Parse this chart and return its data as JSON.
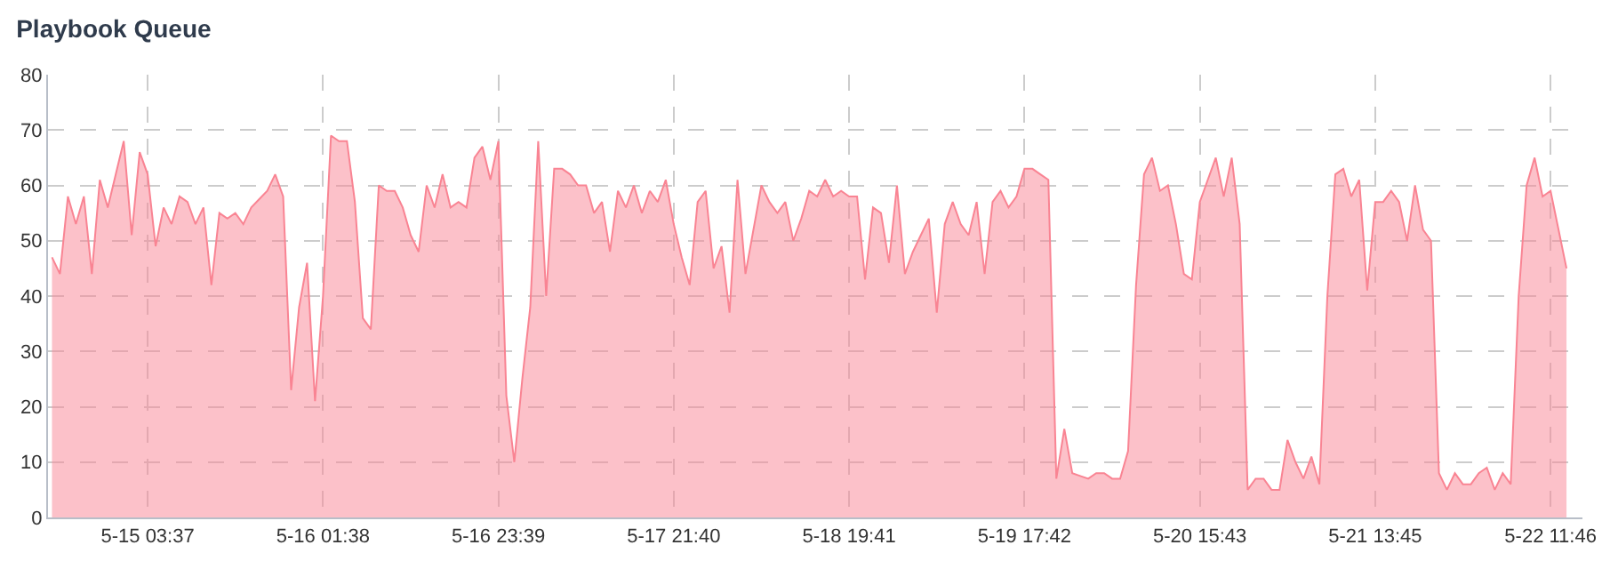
{
  "chart_data": {
    "type": "area",
    "title": "Playbook Queue",
    "categories": [
      null,
      null,
      null,
      null,
      null,
      null,
      null,
      null,
      null,
      null,
      null,
      null,
      "5-15 03:37",
      null,
      null,
      null,
      null,
      null,
      null,
      null,
      null,
      null,
      null,
      null,
      null,
      null,
      null,
      null,
      null,
      null,
      null,
      null,
      null,
      null,
      "5-16 01:38",
      null,
      null,
      null,
      null,
      null,
      null,
      null,
      null,
      null,
      null,
      null,
      null,
      null,
      null,
      null,
      null,
      null,
      null,
      null,
      null,
      null,
      "5-16 23:39",
      null,
      null,
      null,
      null,
      null,
      null,
      null,
      null,
      null,
      null,
      null,
      null,
      null,
      null,
      null,
      null,
      null,
      null,
      null,
      null,
      null,
      "5-17 21:40",
      null,
      null,
      null,
      null,
      null,
      null,
      null,
      null,
      null,
      null,
      null,
      null,
      null,
      null,
      null,
      null,
      null,
      null,
      null,
      null,
      null,
      "5-18 19:41",
      null,
      null,
      null,
      null,
      null,
      null,
      null,
      null,
      null,
      null,
      null,
      null,
      null,
      null,
      null,
      null,
      null,
      null,
      null,
      null,
      null,
      "5-19 17:42",
      null,
      null,
      null,
      null,
      null,
      null,
      null,
      null,
      null,
      null,
      null,
      null,
      null,
      null,
      null,
      null,
      null,
      null,
      null,
      null,
      null,
      "5-20 15:43",
      null,
      null,
      null,
      null,
      null,
      null,
      null,
      null,
      null,
      null,
      null,
      null,
      null,
      null,
      null,
      null,
      null,
      null,
      null,
      null,
      null,
      "5-21 13:45",
      null,
      null,
      null,
      null,
      null,
      null,
      null,
      null,
      null,
      null,
      null,
      null,
      null,
      null,
      null,
      null,
      null,
      null,
      null,
      null,
      null,
      "5-22 11:46",
      null,
      null
    ],
    "series": [
      {
        "color": "#f98493",
        "values": [
          47,
          44,
          58,
          53,
          58,
          44,
          61,
          56,
          62,
          68,
          51,
          66,
          62,
          49,
          56,
          53,
          58,
          57,
          53,
          56,
          42,
          55,
          54,
          55,
          53,
          56,
          57.5,
          59,
          62,
          58,
          23,
          38,
          46,
          21,
          40,
          69,
          68,
          68,
          57,
          36,
          34,
          60,
          59,
          59,
          56,
          51,
          48,
          60,
          56,
          62,
          56,
          57,
          56,
          65,
          67,
          61,
          68,
          22,
          10,
          25,
          38,
          68,
          40,
          63,
          63,
          62,
          60,
          60,
          55,
          57,
          48,
          59,
          56,
          60,
          55,
          59,
          57,
          61,
          53,
          47,
          42,
          57,
          59,
          45,
          49,
          37,
          61,
          44,
          52,
          60,
          57,
          55,
          57,
          50,
          54,
          59,
          58,
          61,
          58,
          59,
          58,
          58,
          43,
          56,
          55,
          46,
          60,
          44,
          48,
          51,
          54,
          37,
          53,
          57,
          53,
          51,
          57,
          44,
          57,
          59,
          56,
          58,
          63,
          63,
          62,
          61,
          7,
          16,
          8,
          7.5,
          7,
          8,
          8,
          7,
          7,
          12,
          42,
          62,
          65,
          59,
          60,
          53,
          44,
          43,
          57,
          61,
          65,
          58,
          65,
          53,
          5,
          7,
          7,
          5,
          5,
          14,
          10,
          7,
          11,
          6,
          40,
          62,
          63,
          58,
          61,
          41,
          57,
          57,
          59,
          57,
          50,
          60,
          52,
          50,
          8,
          5,
          8,
          6,
          6,
          8,
          9,
          5,
          8,
          6,
          40,
          60,
          65,
          58,
          59,
          52,
          45
        ]
      }
    ],
    "ylim": [
      0,
      80
    ],
    "yticks": [
      0,
      10,
      20,
      30,
      40,
      50,
      60,
      70,
      80
    ],
    "grid": true,
    "line_style": "dashed",
    "marker": "none"
  }
}
